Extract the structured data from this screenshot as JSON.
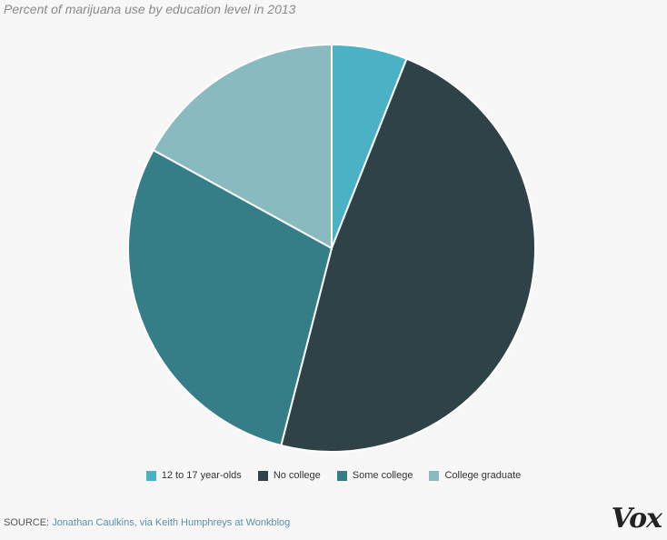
{
  "chart_data": {
    "type": "pie",
    "subtitle": "Percent of marijuana use by education level in 2013",
    "slices": [
      {
        "label": "12 to 17 year-olds",
        "value": 6,
        "color": "#4ab2c4"
      },
      {
        "label": "No college",
        "value": 48,
        "color": "#2f4247"
      },
      {
        "label": "Some college",
        "value": 29,
        "color": "#357e88"
      },
      {
        "label": "College graduate",
        "value": 17,
        "color": "#88babf"
      }
    ],
    "legend_position": "bottom",
    "start_angle": "12 o'clock",
    "direction": "clockwise"
  },
  "source": {
    "label": "SOURCE: ",
    "text": "Jonathan Caulkins, via Keith Humphreys at Wonkblog"
  },
  "logo": {
    "text": "Vox"
  }
}
